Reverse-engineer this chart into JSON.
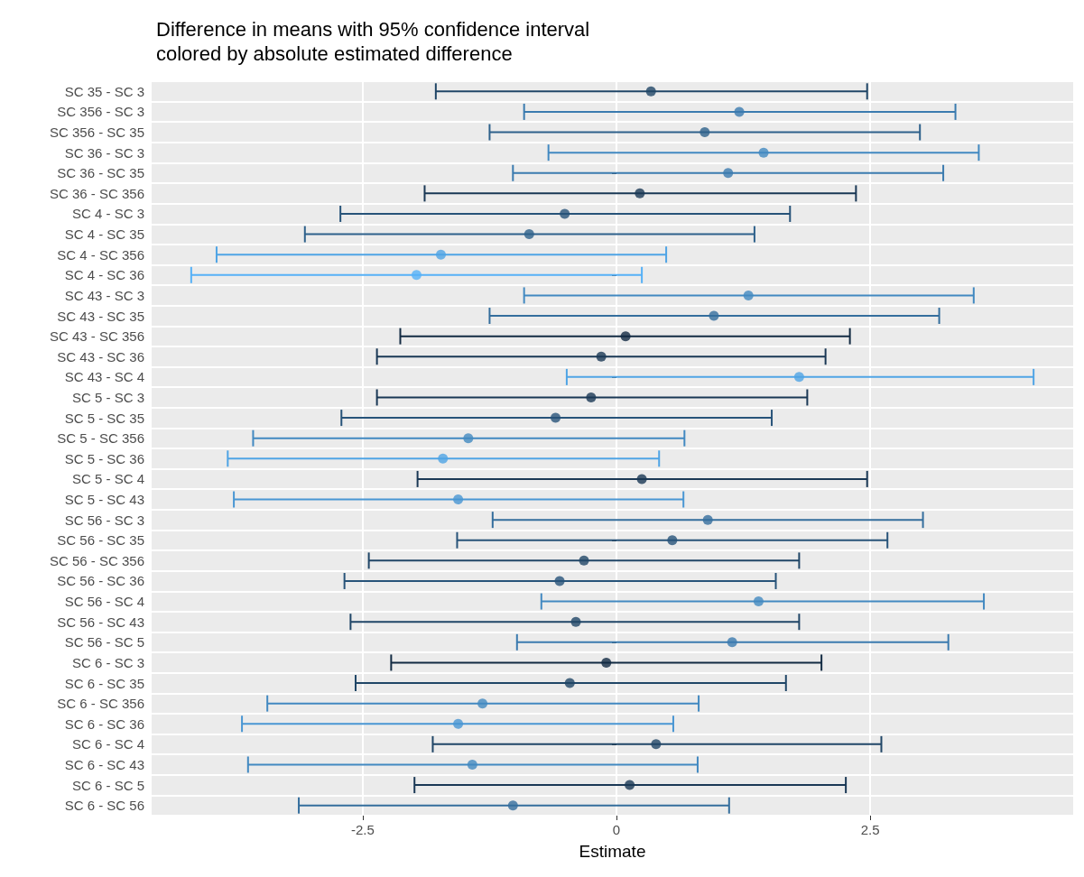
{
  "chart_data": {
    "type": "scatter",
    "orientation": "horizontal",
    "title": "Difference in means with 95% confidence interval\ncolored by absolute estimated difference",
    "xlabel": "Estimate",
    "categories": [
      "SC 35 - SC 3",
      "SC 356 - SC 3",
      "SC 356 - SC 35",
      "SC 36 - SC 3",
      "SC 36 - SC 35",
      "SC 36 - SC 356",
      "SC 4 - SC 3",
      "SC 4 - SC 35",
      "SC 4 - SC 356",
      "SC 4 - SC 36",
      "SC 43 - SC 3",
      "SC 43 - SC 35",
      "SC 43 - SC 356",
      "SC 43 - SC 36",
      "SC 43 - SC 4",
      "SC 5 - SC 3",
      "SC 5 - SC 35",
      "SC 5 - SC 356",
      "SC 5 - SC 36",
      "SC 5 - SC 4",
      "SC 5 - SC 43",
      "SC 56 - SC 3",
      "SC 56 - SC 35",
      "SC 56 - SC 356",
      "SC 56 - SC 36",
      "SC 56 - SC 4",
      "SC 56 - SC 43",
      "SC 56 - SC 5",
      "SC 6 - SC 3",
      "SC 6 - SC 35",
      "SC 6 - SC 356",
      "SC 6 - SC 36",
      "SC 6 - SC 4",
      "SC 6 - SC 43",
      "SC 6 - SC 5",
      "SC 6 - SC 56"
    ],
    "values": [
      0.34,
      1.21,
      0.87,
      1.45,
      1.1,
      0.23,
      -0.51,
      -0.86,
      -1.73,
      -1.97,
      1.3,
      0.96,
      0.09,
      -0.15,
      1.8,
      -0.25,
      -0.6,
      -1.46,
      -1.71,
      0.25,
      -1.56,
      0.9,
      0.55,
      -0.32,
      -0.56,
      1.4,
      -0.4,
      1.14,
      -0.1,
      -0.46,
      -1.32,
      -1.56,
      0.39,
      -1.42,
      0.13,
      -1.02
    ],
    "errors": [
      [
        -1.78,
        2.47
      ],
      [
        -0.91,
        3.34
      ],
      [
        -1.25,
        2.99
      ],
      [
        -0.67,
        3.57
      ],
      [
        -1.02,
        3.22
      ],
      [
        -1.89,
        2.36
      ],
      [
        -2.72,
        1.71
      ],
      [
        -3.07,
        1.36
      ],
      [
        -3.94,
        0.49
      ],
      [
        -4.19,
        0.25
      ],
      [
        -0.91,
        3.52
      ],
      [
        -1.25,
        3.18
      ],
      [
        -2.13,
        2.3
      ],
      [
        -2.36,
        2.06
      ],
      [
        -0.49,
        4.11
      ],
      [
        -2.36,
        1.88
      ],
      [
        -2.71,
        1.53
      ],
      [
        -3.58,
        0.67
      ],
      [
        -3.83,
        0.42
      ],
      [
        -1.96,
        2.47
      ],
      [
        -3.77,
        0.66
      ],
      [
        -1.22,
        3.02
      ],
      [
        -1.57,
        2.67
      ],
      [
        -2.44,
        1.8
      ],
      [
        -2.68,
        1.57
      ],
      [
        -0.74,
        3.62
      ],
      [
        -2.62,
        1.8
      ],
      [
        -0.98,
        3.27
      ],
      [
        -2.22,
        2.02
      ],
      [
        -2.57,
        1.67
      ],
      [
        -3.44,
        0.81
      ],
      [
        -3.69,
        0.56
      ],
      [
        -1.81,
        2.61
      ],
      [
        -3.63,
        0.8
      ],
      [
        -1.99,
        2.26
      ],
      [
        -3.13,
        1.11
      ]
    ],
    "colors": [
      "#204667",
      "#3b7baf",
      "#2e618b",
      "#4289c1",
      "#3b7baf",
      "#1a3855",
      "#275379",
      "#2e618b",
      "#4fa4e5",
      "#56b1f7",
      "#4289c1",
      "#346e9d",
      "#132b43",
      "#1a3855",
      "#4fa4e5",
      "#1a3855",
      "#275379",
      "#4289c1",
      "#4fa4e5",
      "#1a3855",
      "#4996d3",
      "#346e9d",
      "#275379",
      "#204667",
      "#275379",
      "#4289c1",
      "#204667",
      "#3b7baf",
      "#132b43",
      "#204667",
      "#4289c1",
      "#4996d3",
      "#204667",
      "#4289c1",
      "#1a3855",
      "#346e9d"
    ],
    "xlim": [
      -4.58,
      4.5
    ],
    "xticks": [
      -2.5,
      0,
      2.5
    ],
    "grid": true,
    "marker": "circle"
  }
}
